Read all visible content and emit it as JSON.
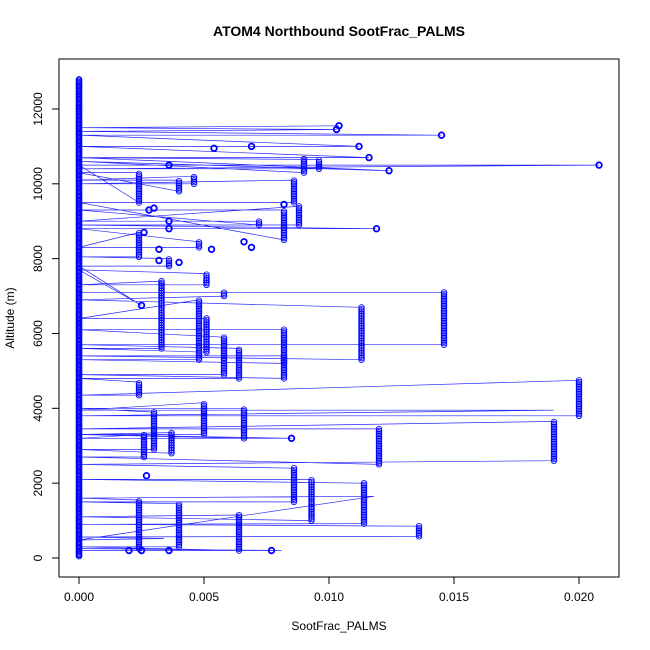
{
  "chart_data": {
    "type": "scatter",
    "title": "ATOM4 Northbound SootFrac_PALMS",
    "xlabel": "SootFrac_PALMS",
    "ylabel": "Altitude (m)",
    "xlim": [
      0,
      0.021
    ],
    "ylim": [
      0,
      12800
    ],
    "x_ticks": [
      0.0,
      0.005,
      0.01,
      0.015,
      0.02
    ],
    "x_tick_labels": [
      "0.000",
      "0.005",
      "0.010",
      "0.015",
      "0.020"
    ],
    "y_ticks": [
      0,
      2000,
      4000,
      6000,
      8000,
      10000,
      12000
    ],
    "y_tick_labels": [
      "0",
      "2000",
      "4000",
      "6000",
      "8000",
      "10000",
      "12000"
    ],
    "grid": false,
    "legend": "none",
    "colors": {
      "points": "#0000ff",
      "lines": "#0000ff",
      "axes": "#000000"
    },
    "series": [
      {
        "points": [
          [
            0,
            200
          ],
          [
            0.0081,
            200
          ],
          [
            0,
            250
          ],
          [
            0.0024,
            250
          ],
          [
            0.0024,
            1550
          ],
          [
            0,
            1600
          ],
          [
            0.0118,
            1650
          ],
          [
            0,
            480
          ],
          [
            0.0034,
            520
          ],
          [
            0,
            560
          ],
          [
            0.0136,
            580
          ],
          [
            0.0136,
            850
          ],
          [
            0,
            900
          ],
          [
            0.0114,
            920
          ],
          [
            0.0114,
            2000
          ],
          [
            0,
            2100
          ],
          [
            0.0093,
            2100
          ],
          [
            0.0093,
            1000
          ],
          [
            0,
            1100
          ],
          [
            0.0064,
            1150
          ],
          [
            0.0064,
            200
          ],
          [
            0,
            300
          ],
          [
            0.004,
            300
          ],
          [
            0.004,
            1450
          ],
          [
            0,
            1500
          ],
          [
            0.0086,
            1500
          ],
          [
            0.0086,
            2400
          ],
          [
            0,
            2500
          ],
          [
            0.019,
            2600
          ],
          [
            0.019,
            3650
          ],
          [
            0,
            3450
          ],
          [
            0.012,
            3450
          ],
          [
            0.012,
            2500
          ],
          [
            0,
            2700
          ],
          [
            0.0026,
            2700
          ],
          [
            0.0026,
            3300
          ],
          [
            0,
            3200
          ],
          [
            0.0085,
            3200
          ],
          [
            0,
            3300
          ],
          [
            0.0037,
            3350
          ],
          [
            0.0037,
            2800
          ],
          [
            0,
            2900
          ],
          [
            0.003,
            2900
          ],
          [
            0.003,
            3900
          ],
          [
            0,
            4000
          ],
          [
            0.0066,
            4000
          ],
          [
            0.0066,
            3200
          ],
          [
            0,
            3300
          ],
          [
            0.005,
            3300
          ],
          [
            0.005,
            4150
          ],
          [
            0,
            3950
          ],
          [
            0.019,
            3950
          ],
          [
            0,
            3800
          ],
          [
            0.02,
            3800
          ],
          [
            0.02,
            4750
          ],
          [
            0,
            4350
          ],
          [
            0.0024,
            4350
          ],
          [
            0.0024,
            4700
          ],
          [
            0,
            4800
          ],
          [
            0.0064,
            4800
          ],
          [
            0.0064,
            5600
          ],
          [
            0,
            5700
          ],
          [
            0.0146,
            5700
          ],
          [
            0.0146,
            7100
          ],
          [
            0,
            7100
          ],
          [
            0.0058,
            7100
          ],
          [
            0.0058,
            7000
          ],
          [
            0,
            6900
          ],
          [
            0.0113,
            6700
          ],
          [
            0.0113,
            5300
          ],
          [
            0,
            5400
          ],
          [
            0.0082,
            5400
          ],
          [
            0.0082,
            4800
          ],
          [
            0,
            4900
          ],
          [
            0.0058,
            4900
          ],
          [
            0.0058,
            5900
          ],
          [
            0,
            6100
          ],
          [
            0.0082,
            6100
          ],
          [
            0.0082,
            5200
          ],
          [
            0,
            5300
          ],
          [
            0.0048,
            5300
          ],
          [
            0.0048,
            6900
          ],
          [
            0,
            6400
          ],
          [
            0.0051,
            6400
          ],
          [
            0.0051,
            5500
          ],
          [
            0,
            5600
          ],
          [
            0.0033,
            5600
          ],
          [
            0.0033,
            7400
          ],
          [
            0,
            7300
          ],
          [
            0.0051,
            7300
          ],
          [
            0.0051,
            7600
          ],
          [
            0,
            7700
          ],
          [
            0.0025,
            6750
          ],
          [
            0,
            7800
          ],
          [
            0.0036,
            7800
          ],
          [
            0.0036,
            8000
          ],
          [
            0,
            8050
          ],
          [
            0.0024,
            8050
          ],
          [
            0.0024,
            8700
          ],
          [
            0,
            8300
          ],
          [
            0.0048,
            8300
          ],
          [
            0.0048,
            8450
          ],
          [
            0,
            8800
          ],
          [
            0.0119,
            8800
          ],
          [
            0,
            8900
          ],
          [
            0.0088,
            8900
          ],
          [
            0.0088,
            9400
          ],
          [
            0,
            9000
          ],
          [
            0.0072,
            9000
          ],
          [
            0.0072,
            8900
          ],
          [
            0,
            9300
          ],
          [
            0.0082,
            9300
          ],
          [
            0.0082,
            8500
          ],
          [
            0,
            9500
          ],
          [
            0.0086,
            9500
          ],
          [
            0.0086,
            10100
          ],
          [
            0,
            10000
          ],
          [
            0.0046,
            10000
          ],
          [
            0.0046,
            10200
          ],
          [
            0,
            10100
          ],
          [
            0.004,
            10100
          ],
          [
            0.004,
            9800
          ],
          [
            0,
            10300
          ],
          [
            0.0024,
            10300
          ],
          [
            0.0024,
            9500
          ],
          [
            0,
            10500
          ],
          [
            0.0208,
            10500
          ],
          [
            0,
            10400
          ],
          [
            0.0096,
            10400
          ],
          [
            0.0096,
            10650
          ],
          [
            0,
            10700
          ],
          [
            0.009,
            10700
          ],
          [
            0.009,
            10300
          ],
          [
            0,
            10600
          ],
          [
            0.0124,
            10350
          ],
          [
            0,
            10700
          ],
          [
            0.0116,
            10700
          ],
          [
            0,
            11000
          ],
          [
            0.0112,
            11000
          ],
          [
            0,
            11300
          ],
          [
            0.0145,
            11300
          ],
          [
            0,
            11400
          ],
          [
            0.0103,
            11450
          ],
          [
            0,
            11500
          ],
          [
            0.0104,
            11550
          ]
        ]
      }
    ],
    "scatter_points": [
      [
        0.0104,
        11550
      ],
      [
        0.0103,
        11450
      ],
      [
        0.0145,
        11300
      ],
      [
        0.0112,
        11000
      ],
      [
        0.0069,
        11000
      ],
      [
        0.0054,
        10950
      ],
      [
        0.0116,
        10700
      ],
      [
        0.0036,
        10500
      ],
      [
        0.0208,
        10500
      ],
      [
        0.0124,
        10350
      ],
      [
        0.0082,
        9450
      ],
      [
        0.003,
        9350
      ],
      [
        0.0028,
        9300
      ],
      [
        0.0036,
        9000
      ],
      [
        0.0119,
        8800
      ],
      [
        0.0036,
        8800
      ],
      [
        0.0026,
        8700
      ],
      [
        0.0066,
        8450
      ],
      [
        0.0069,
        8300
      ],
      [
        0.0032,
        8250
      ],
      [
        0.0053,
        8250
      ],
      [
        0.004,
        7900
      ],
      [
        0.0032,
        7950
      ],
      [
        0.0025,
        6750
      ],
      [
        0.0085,
        3200
      ],
      [
        0.0027,
        2200
      ],
      [
        0.0025,
        200
      ],
      [
        0.0077,
        200
      ],
      [
        0.0036,
        200
      ],
      [
        0.002,
        200
      ]
    ]
  }
}
